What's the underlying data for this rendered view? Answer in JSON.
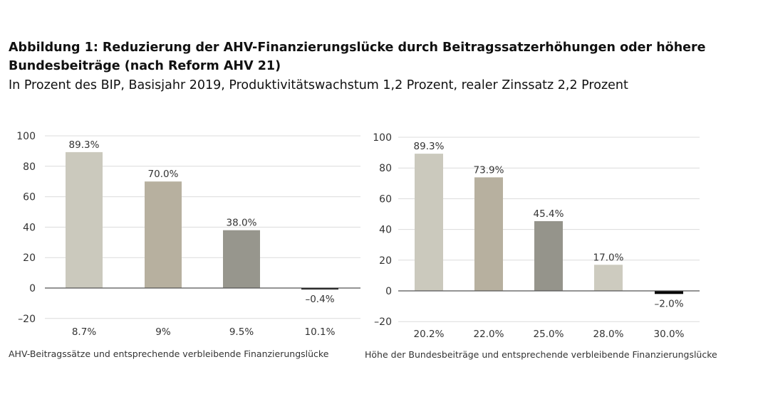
{
  "title_line1": "Abbildung 1: Reduzierung der AHV-Finanzierungslücke durch Beitragssatzerhöhungen oder höhere",
  "title_line2": "Bundesbeiträge (nach Reform AHV 21)",
  "subtitle": "In Prozent des BIP, Basisjahr 2019, Produktivitätswachstum 1,2 Prozent, realer Zinssatz 2,2 Prozent",
  "chart_data": [
    {
      "type": "bar",
      "title": "",
      "xlabel": "AHV-Beitragssätze und entsprechende verbleibende Finanzierungslücke",
      "ylabel": "",
      "categories": [
        "8.7%",
        "9%",
        "9.5%",
        "10.1%"
      ],
      "values": [
        89.3,
        70.0,
        38.0,
        -0.4
      ],
      "data_labels": [
        "89.3%",
        "70.0%",
        "38.0%",
        "–0.4%"
      ],
      "colors": [
        "#cbc9bd",
        "#b7b09f",
        "#97968d",
        "#111111"
      ],
      "ylim": [
        -20,
        100
      ],
      "yticks": [
        -20,
        0,
        20,
        40,
        60,
        80,
        100
      ],
      "ytick_labels": [
        "–20",
        "0",
        "20",
        "40",
        "60",
        "80",
        "100"
      ],
      "grid": true
    },
    {
      "type": "bar",
      "title": "",
      "xlabel": "Höhe der Bundesbeiträge und entsprechende verbleibende Finanzierungslücke",
      "ylabel": "",
      "categories": [
        "20.2%",
        "22.0%",
        "25.0%",
        "28.0%",
        "30.0%"
      ],
      "values": [
        89.3,
        73.9,
        45.4,
        17.0,
        -2.0
      ],
      "data_labels": [
        "89.3%",
        "73.9%",
        "45.4%",
        "17.0%",
        "–2.0%"
      ],
      "colors": [
        "#cbc9bd",
        "#b7b09f",
        "#95948b",
        "#cdcbbf",
        "#000000"
      ],
      "ylim": [
        -20,
        100
      ],
      "yticks": [
        -20,
        0,
        20,
        40,
        60,
        80,
        100
      ],
      "ytick_labels": [
        "–20",
        "0",
        "20",
        "40",
        "60",
        "80",
        "100"
      ],
      "grid": true
    }
  ]
}
